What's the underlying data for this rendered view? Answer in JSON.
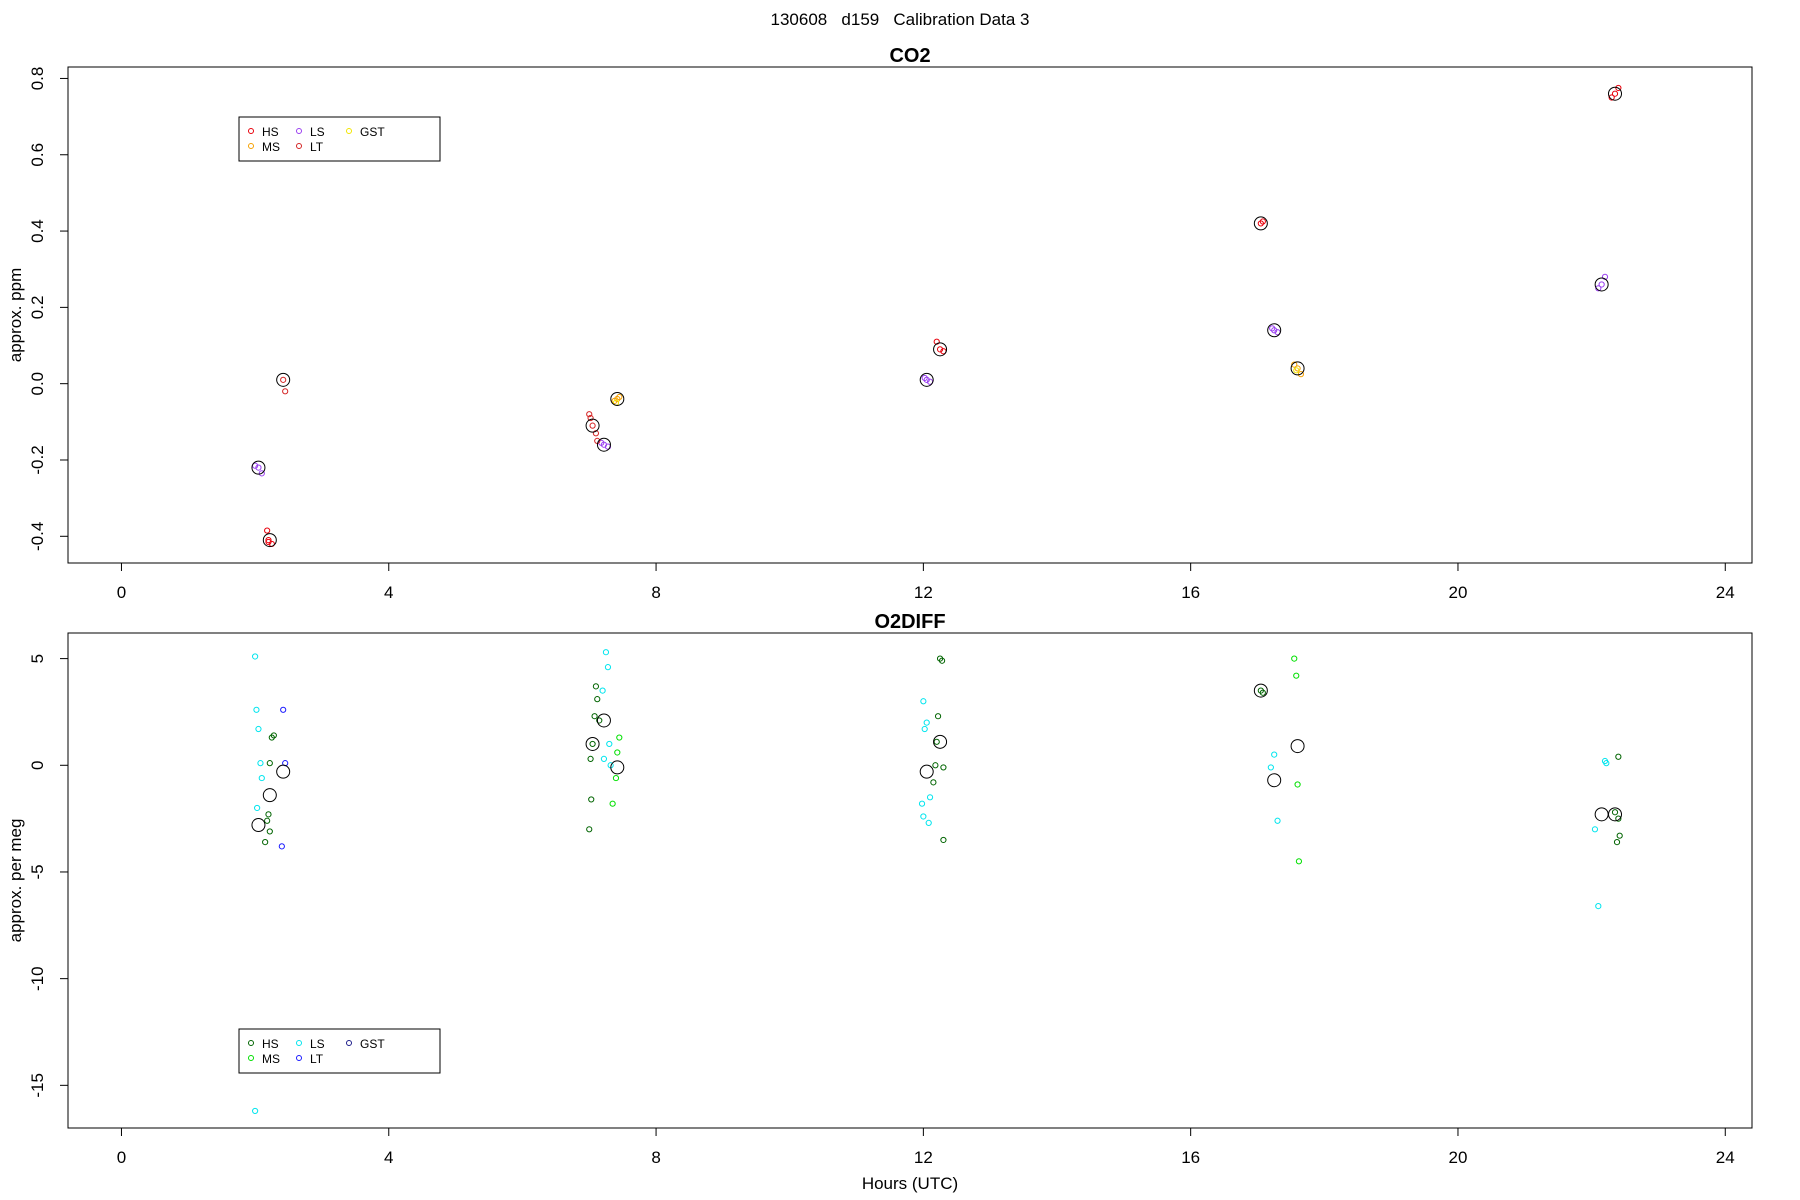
{
  "title": "130608   d159   Calibration Data 3",
  "chart_data": [
    {
      "type": "scatter",
      "title": "CO2",
      "xlabel": "",
      "ylabel": "approx. ppm",
      "xlim": [
        -0.8,
        24.4
      ],
      "ylim": [
        -0.47,
        0.83
      ],
      "xticks": [
        0,
        4,
        8,
        12,
        16,
        20,
        24
      ],
      "yticks": [
        -0.4,
        -0.2,
        0.0,
        0.2,
        0.4,
        0.6,
        0.8
      ],
      "ytick_labels": [
        "-0.4",
        "-0.2",
        "0.0",
        "0.2",
        "0.4",
        "0.6",
        "0.8"
      ],
      "grid": false,
      "legend_position": "top-left",
      "series": [
        {
          "name": "HS",
          "color": "#e8000b",
          "points": [
            [
              2.2,
              -0.41
            ],
            [
              2.18,
              -0.385
            ],
            [
              2.25,
              -0.42
            ],
            [
              2.2,
              -0.415
            ],
            [
              12.25,
              0.09
            ],
            [
              12.2,
              0.11
            ],
            [
              12.3,
              0.085
            ],
            [
              17.05,
              0.42
            ],
            [
              17.08,
              0.425
            ],
            [
              22.35,
              0.76
            ],
            [
              22.3,
              0.75
            ],
            [
              22.4,
              0.775
            ]
          ]
        },
        {
          "name": "MS",
          "color": "#f5a000",
          "points": [
            [
              7.42,
              -0.04
            ],
            [
              7.38,
              -0.045
            ],
            [
              7.45,
              -0.035
            ],
            [
              17.6,
              0.04
            ],
            [
              17.55,
              0.05
            ],
            [
              17.65,
              0.025
            ]
          ]
        },
        {
          "name": "LS",
          "color": "#9a3ff0",
          "points": [
            [
              2.05,
              -0.22
            ],
            [
              2.0,
              -0.215
            ],
            [
              2.1,
              -0.235
            ],
            [
              7.22,
              -0.16
            ],
            [
              7.18,
              -0.155
            ],
            [
              7.28,
              -0.165
            ],
            [
              12.05,
              0.01
            ],
            [
              12.02,
              0.015
            ],
            [
              12.1,
              0.005
            ],
            [
              17.25,
              0.14
            ],
            [
              17.22,
              0.145
            ],
            [
              17.3,
              0.135
            ],
            [
              22.15,
              0.26
            ],
            [
              22.1,
              0.25
            ],
            [
              22.2,
              0.28
            ]
          ]
        },
        {
          "name": "LT",
          "color": "#d42424",
          "points": [
            [
              2.42,
              0.01
            ],
            [
              2.45,
              -0.02
            ],
            [
              7.05,
              -0.11
            ],
            [
              7.0,
              -0.08
            ],
            [
              7.02,
              -0.09
            ],
            [
              7.1,
              -0.13
            ],
            [
              7.12,
              -0.15
            ]
          ]
        },
        {
          "name": "GST",
          "color": "#f2e600",
          "points": [
            [
              7.4,
              -0.05
            ],
            [
              17.58,
              0.035
            ]
          ]
        }
      ],
      "means": [
        [
          2.22,
          -0.41
        ],
        [
          2.05,
          -0.22
        ],
        [
          2.42,
          0.01
        ],
        [
          7.05,
          -0.11
        ],
        [
          7.22,
          -0.16
        ],
        [
          7.42,
          -0.04
        ],
        [
          12.05,
          0.01
        ],
        [
          12.25,
          0.09
        ],
        [
          17.05,
          0.42
        ],
        [
          17.25,
          0.14
        ],
        [
          17.6,
          0.04
        ],
        [
          22.15,
          0.26
        ],
        [
          22.35,
          0.76
        ]
      ]
    },
    {
      "type": "scatter",
      "title": "O2DIFF",
      "xlabel": "Hours (UTC)",
      "ylabel": "approx. per meg",
      "xlim": [
        -0.8,
        24.4
      ],
      "ylim": [
        -17,
        6.2
      ],
      "xticks": [
        0,
        4,
        8,
        12,
        16,
        20,
        24
      ],
      "yticks": [
        -15,
        -10,
        -5,
        0,
        5
      ],
      "ytick_labels": [
        "-15",
        "-10",
        "-5",
        "0",
        "5"
      ],
      "grid": false,
      "legend_position": "bottom-left",
      "series": [
        {
          "name": "HS",
          "color": "#006400",
          "points": [
            [
              2.25,
              1.3
            ],
            [
              2.28,
              1.4
            ],
            [
              2.22,
              0.1
            ],
            [
              2.2,
              -2.3
            ],
            [
              2.18,
              -2.6
            ],
            [
              2.22,
              -3.1
            ],
            [
              2.15,
              -3.6
            ],
            [
              7.1,
              3.7
            ],
            [
              7.12,
              3.1
            ],
            [
              7.08,
              2.3
            ],
            [
              7.15,
              2.1
            ],
            [
              7.05,
              1.0
            ],
            [
              7.02,
              0.3
            ],
            [
              7.03,
              -1.6
            ],
            [
              7.0,
              -3.0
            ],
            [
              12.25,
              5.0
            ],
            [
              12.28,
              4.9
            ],
            [
              12.22,
              2.3
            ],
            [
              12.2,
              1.1
            ],
            [
              12.18,
              0.0
            ],
            [
              12.3,
              -0.1
            ],
            [
              12.15,
              -0.8
            ],
            [
              12.3,
              -3.5
            ],
            [
              17.05,
              3.5
            ],
            [
              17.08,
              3.4
            ],
            [
              22.4,
              0.4
            ],
            [
              22.35,
              -2.2
            ],
            [
              22.4,
              -2.5
            ],
            [
              22.42,
              -3.3
            ],
            [
              22.38,
              -3.6
            ]
          ]
        },
        {
          "name": "MS",
          "color": "#00e000",
          "points": [
            [
              7.45,
              1.3
            ],
            [
              7.42,
              0.6
            ],
            [
              7.4,
              -0.6
            ],
            [
              7.35,
              -1.8
            ],
            [
              17.55,
              5.0
            ],
            [
              17.58,
              4.2
            ],
            [
              17.6,
              -0.9
            ],
            [
              17.62,
              -4.5
            ]
          ]
        },
        {
          "name": "LS",
          "color": "#00e5ee",
          "points": [
            [
              2.0,
              5.1
            ],
            [
              2.02,
              2.6
            ],
            [
              2.05,
              1.7
            ],
            [
              2.08,
              0.1
            ],
            [
              2.1,
              -0.6
            ],
            [
              2.03,
              -2.0
            ],
            [
              2.0,
              -16.2
            ],
            [
              7.25,
              5.3
            ],
            [
              7.28,
              4.6
            ],
            [
              7.2,
              3.5
            ],
            [
              7.3,
              1.0
            ],
            [
              7.22,
              0.3
            ],
            [
              7.32,
              0.0
            ],
            [
              12.0,
              3.0
            ],
            [
              12.05,
              2.0
            ],
            [
              12.02,
              1.7
            ],
            [
              12.1,
              -1.5
            ],
            [
              11.98,
              -1.8
            ],
            [
              12.0,
              -2.4
            ],
            [
              12.08,
              -2.7
            ],
            [
              17.25,
              0.5
            ],
            [
              17.2,
              -0.1
            ],
            [
              17.3,
              -2.6
            ],
            [
              22.05,
              -3.0
            ],
            [
              22.1,
              -6.6
            ],
            [
              22.2,
              0.2
            ],
            [
              22.22,
              0.1
            ]
          ]
        },
        {
          "name": "LT",
          "color": "#1a1aff",
          "points": [
            [
              2.42,
              2.6
            ],
            [
              2.45,
              0.1
            ],
            [
              2.4,
              -3.8
            ]
          ]
        },
        {
          "name": "GST",
          "color": "#1c1c8a",
          "points": []
        }
      ],
      "means": [
        [
          2.05,
          -2.8
        ],
        [
          2.22,
          -1.4
        ],
        [
          2.42,
          -0.3
        ],
        [
          7.05,
          1.0
        ],
        [
          7.22,
          2.1
        ],
        [
          7.42,
          -0.1
        ],
        [
          12.05,
          -0.3
        ],
        [
          12.25,
          1.1
        ],
        [
          17.05,
          3.5
        ],
        [
          17.25,
          -0.7
        ],
        [
          17.6,
          0.9
        ],
        [
          22.15,
          -2.3
        ],
        [
          22.35,
          -2.3
        ]
      ]
    }
  ]
}
